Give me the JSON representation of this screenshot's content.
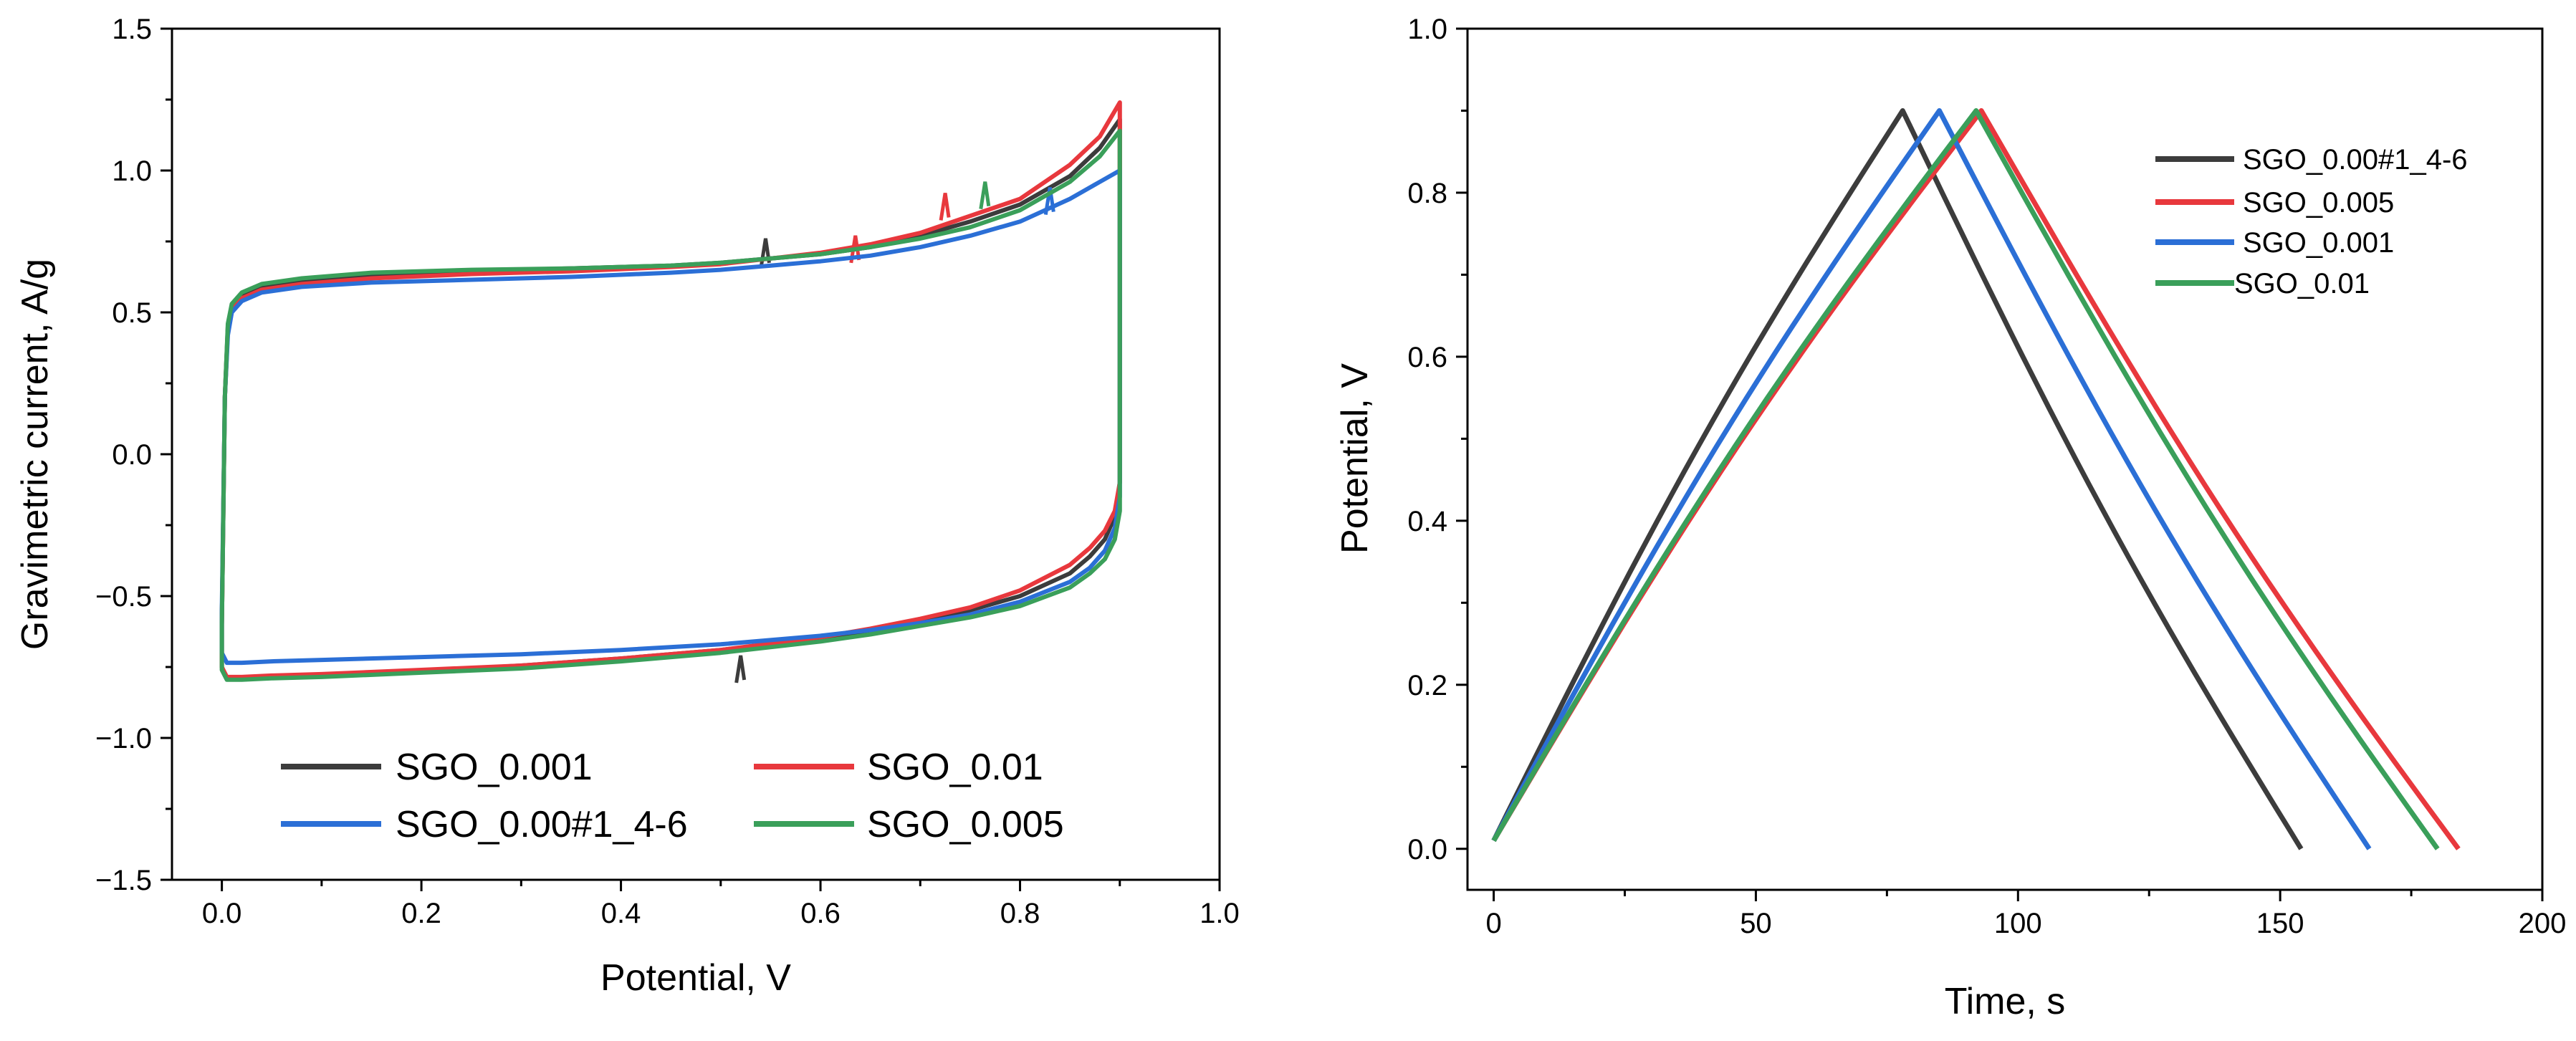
{
  "chart_data": [
    {
      "type": "line",
      "title": "",
      "xlabel": "Potential, V",
      "ylabel": "Gravimetric current, A/g",
      "xlim": [
        -0.05,
        1.0
      ],
      "ylim": [
        -1.5,
        1.5
      ],
      "xticks": [
        0.0,
        0.2,
        0.4,
        0.6,
        0.8,
        1.0
      ],
      "xtick_labels": [
        "0.0",
        "0.2",
        "0.4",
        "0.6",
        "0.8",
        "1.0"
      ],
      "yticks": [
        -1.5,
        -1.0,
        -0.5,
        0.0,
        0.5,
        1.0,
        1.5
      ],
      "ytick_labels": [
        "−1.5",
        "−1.0",
        "−0.5",
        "0.0",
        "0.5",
        "1.0",
        "1.5"
      ],
      "legend_position": "bottom",
      "series": [
        {
          "name": "SGO_0.001",
          "color": "#3c3c3c",
          "x": [
            0.0,
            0.003,
            0.006,
            0.01,
            0.02,
            0.04,
            0.08,
            0.15,
            0.25,
            0.35,
            0.45,
            0.5,
            0.55,
            0.6,
            0.65,
            0.7,
            0.75,
            0.8,
            0.85,
            0.88,
            0.9,
            0.9,
            0.9,
            0.895,
            0.885,
            0.87,
            0.85,
            0.8,
            0.75,
            0.7,
            0.65,
            0.6,
            0.5,
            0.4,
            0.3,
            0.2,
            0.1,
            0.05,
            0.02,
            0.005,
            0.0,
            0.0
          ],
          "y": [
            -0.6,
            0.2,
            0.45,
            0.52,
            0.56,
            0.59,
            0.61,
            0.63,
            0.645,
            0.655,
            0.665,
            0.675,
            0.69,
            0.705,
            0.73,
            0.77,
            0.82,
            0.88,
            0.98,
            1.08,
            1.18,
            0.6,
            -0.1,
            -0.22,
            -0.3,
            -0.36,
            -0.42,
            -0.5,
            -0.55,
            -0.59,
            -0.62,
            -0.65,
            -0.69,
            -0.72,
            -0.745,
            -0.765,
            -0.78,
            -0.785,
            -0.79,
            -0.79,
            -0.75,
            -0.6
          ],
          "markers": [
            {
              "x": 0.545,
              "y": 0.72
            },
            {
              "x": 0.52,
              "y": -0.75
            }
          ]
        },
        {
          "name": "SGO_0.01",
          "color": "#e8383d",
          "x": [
            0.0,
            0.003,
            0.006,
            0.01,
            0.02,
            0.04,
            0.08,
            0.15,
            0.25,
            0.35,
            0.45,
            0.5,
            0.55,
            0.6,
            0.65,
            0.7,
            0.75,
            0.8,
            0.85,
            0.88,
            0.9,
            0.9,
            0.9,
            0.895,
            0.885,
            0.87,
            0.85,
            0.8,
            0.75,
            0.7,
            0.65,
            0.6,
            0.5,
            0.4,
            0.3,
            0.2,
            0.1,
            0.05,
            0.02,
            0.005,
            0.0,
            0.0
          ],
          "y": [
            -0.6,
            0.2,
            0.44,
            0.51,
            0.55,
            0.58,
            0.6,
            0.62,
            0.635,
            0.645,
            0.66,
            0.67,
            0.69,
            0.71,
            0.74,
            0.78,
            0.84,
            0.9,
            1.02,
            1.12,
            1.24,
            0.6,
            -0.1,
            -0.2,
            -0.27,
            -0.33,
            -0.39,
            -0.48,
            -0.54,
            -0.58,
            -0.615,
            -0.645,
            -0.69,
            -0.72,
            -0.745,
            -0.76,
            -0.775,
            -0.78,
            -0.785,
            -0.785,
            -0.75,
            -0.6
          ],
          "markers": [
            {
              "x": 0.725,
              "y": 0.88
            },
            {
              "x": 0.635,
              "y": 0.73
            }
          ]
        },
        {
          "name": "SGO_0.00#1_4-6",
          "color": "#2b6fd6",
          "x": [
            0.0,
            0.003,
            0.006,
            0.01,
            0.02,
            0.04,
            0.08,
            0.15,
            0.25,
            0.35,
            0.45,
            0.5,
            0.55,
            0.6,
            0.65,
            0.7,
            0.75,
            0.8,
            0.85,
            0.88,
            0.9,
            0.9,
            0.9,
            0.895,
            0.885,
            0.87,
            0.85,
            0.8,
            0.75,
            0.7,
            0.65,
            0.6,
            0.5,
            0.4,
            0.3,
            0.2,
            0.1,
            0.05,
            0.02,
            0.005,
            0.0,
            0.0
          ],
          "y": [
            -0.55,
            0.2,
            0.42,
            0.5,
            0.54,
            0.57,
            0.59,
            0.605,
            0.615,
            0.625,
            0.64,
            0.65,
            0.665,
            0.68,
            0.7,
            0.73,
            0.77,
            0.82,
            0.9,
            0.96,
            1.0,
            0.55,
            -0.15,
            -0.26,
            -0.34,
            -0.4,
            -0.45,
            -0.52,
            -0.565,
            -0.595,
            -0.62,
            -0.64,
            -0.67,
            -0.69,
            -0.705,
            -0.715,
            -0.725,
            -0.73,
            -0.735,
            -0.735,
            -0.7,
            -0.55
          ],
          "markers": [
            {
              "x": 0.83,
              "y": 0.9
            }
          ]
        },
        {
          "name": "SGO_0.005",
          "color": "#3a9f5a",
          "x": [
            0.0,
            0.003,
            0.006,
            0.01,
            0.02,
            0.04,
            0.08,
            0.15,
            0.25,
            0.35,
            0.45,
            0.5,
            0.55,
            0.6,
            0.65,
            0.7,
            0.75,
            0.8,
            0.85,
            0.88,
            0.9,
            0.9,
            0.9,
            0.895,
            0.885,
            0.87,
            0.85,
            0.8,
            0.75,
            0.7,
            0.65,
            0.6,
            0.5,
            0.4,
            0.3,
            0.2,
            0.1,
            0.05,
            0.02,
            0.005,
            0.0,
            0.0
          ],
          "y": [
            -0.6,
            0.2,
            0.46,
            0.53,
            0.57,
            0.6,
            0.62,
            0.64,
            0.65,
            0.655,
            0.665,
            0.675,
            0.69,
            0.705,
            0.73,
            0.76,
            0.8,
            0.86,
            0.96,
            1.05,
            1.14,
            0.5,
            -0.2,
            -0.3,
            -0.37,
            -0.42,
            -0.47,
            -0.535,
            -0.575,
            -0.605,
            -0.635,
            -0.66,
            -0.7,
            -0.73,
            -0.755,
            -0.77,
            -0.785,
            -0.79,
            -0.795,
            -0.795,
            -0.76,
            -0.6
          ],
          "markers": [
            {
              "x": 0.765,
              "y": 0.92
            }
          ]
        }
      ]
    },
    {
      "type": "line",
      "title": "",
      "xlabel": "Time, s",
      "ylabel": "Potential, V",
      "xlim": [
        -5,
        200
      ],
      "ylim": [
        -0.05,
        1.0
      ],
      "xticks": [
        0,
        50,
        100,
        150,
        200
      ],
      "xtick_labels": [
        "0",
        "50",
        "100",
        "150",
        "200"
      ],
      "yticks": [
        0.0,
        0.2,
        0.4,
        0.6,
        0.8,
        1.0
      ],
      "ytick_labels": [
        "0.0",
        "0.2",
        "0.4",
        "0.6",
        "0.8",
        "1.0"
      ],
      "legend_position": "top-right",
      "series": [
        {
          "name": "SGO_0.00#1_4-6",
          "color": "#3c3c3c",
          "t_start": 0,
          "t_peak": 78,
          "t_end": 154,
          "v_start": 0.01,
          "v_peak": 0.9
        },
        {
          "name": "SGO_0.005",
          "color": "#e8383d",
          "t_start": 0,
          "t_peak": 93,
          "t_end": 184,
          "v_start": 0.01,
          "v_peak": 0.9
        },
        {
          "name": "SGO_0.001",
          "color": "#2b6fd6",
          "t_start": 0,
          "t_peak": 85,
          "t_end": 167,
          "v_start": 0.01,
          "v_peak": 0.9
        },
        {
          "name": "SGO_0.01",
          "color": "#3a9f5a",
          "t_start": 0,
          "t_peak": 92,
          "t_end": 180,
          "v_start": 0.01,
          "v_peak": 0.9
        }
      ]
    }
  ]
}
